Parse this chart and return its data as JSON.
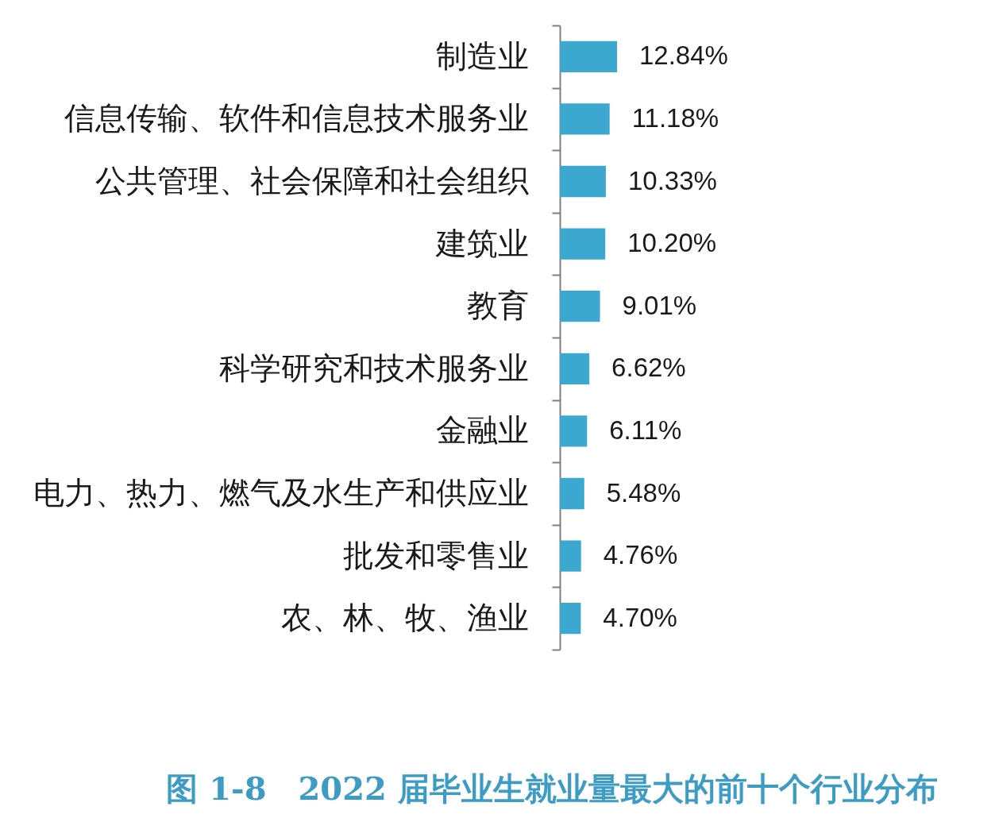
{
  "chart_data": {
    "type": "bar",
    "orientation": "horizontal",
    "title": "图 1-8　2022 届毕业生就业量最大的前十个行业分布",
    "categories": [
      "制造业",
      "信息传输、软件和信息技术服务业",
      "公共管理、社会保障和社会组织",
      "建筑业",
      "教育",
      "科学研究和技术服务业",
      "金融业",
      "电力、热力、燃气及水生产和供应业",
      "批发和零售业",
      "农、林、牧、渔业"
    ],
    "values": [
      12.84,
      11.18,
      10.33,
      10.2,
      9.01,
      6.62,
      6.11,
      5.48,
      4.76,
      4.7
    ],
    "value_labels": [
      "12.84%",
      "11.18%",
      "10.33%",
      "10.20%",
      "9.01%",
      "6.62%",
      "6.11%",
      "5.48%",
      "4.76%",
      "4.70%"
    ],
    "color": "#3ca7cf",
    "tick_labels": "y"
  }
}
